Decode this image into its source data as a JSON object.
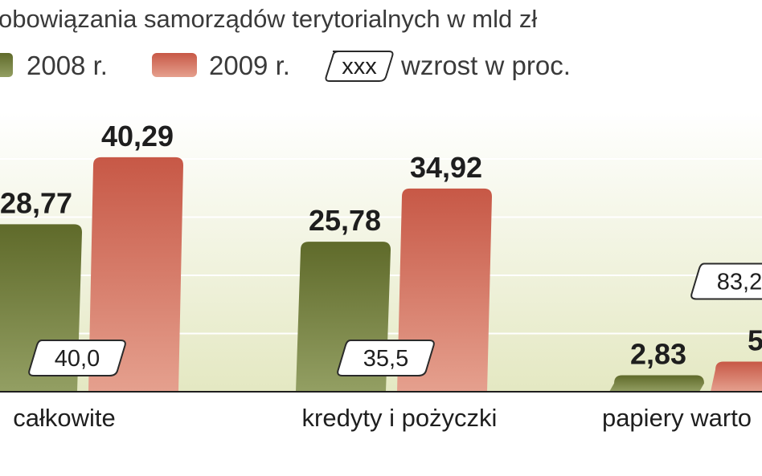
{
  "chart_data": {
    "type": "bar",
    "title": "obowiązania samorządów terytorialnych w mld zł",
    "categories": [
      "całkowite",
      "kredyty i pożyczki",
      "papiery warto"
    ],
    "series": [
      {
        "name": "2008 r.",
        "color": "#6f7a34",
        "values": [
          28.77,
          25.78,
          2.83
        ],
        "value_labels": [
          "28,77",
          "25,78",
          "2,83"
        ]
      },
      {
        "name": "2009 r.",
        "color": "#cf6a58",
        "values": [
          40.29,
          34.92,
          5.18
        ],
        "value_labels": [
          "40,29",
          "34,92",
          "5,"
        ]
      }
    ],
    "growth": [
      "40,0",
      "35,5",
      "83,2"
    ],
    "legend": {
      "growth_label": "wzrost w proc.",
      "growth_symbol": "xxx"
    },
    "ylim": [
      0,
      48
    ],
    "grid": true,
    "background_gradient": [
      "#ffffff",
      "#e6e9c6"
    ]
  }
}
